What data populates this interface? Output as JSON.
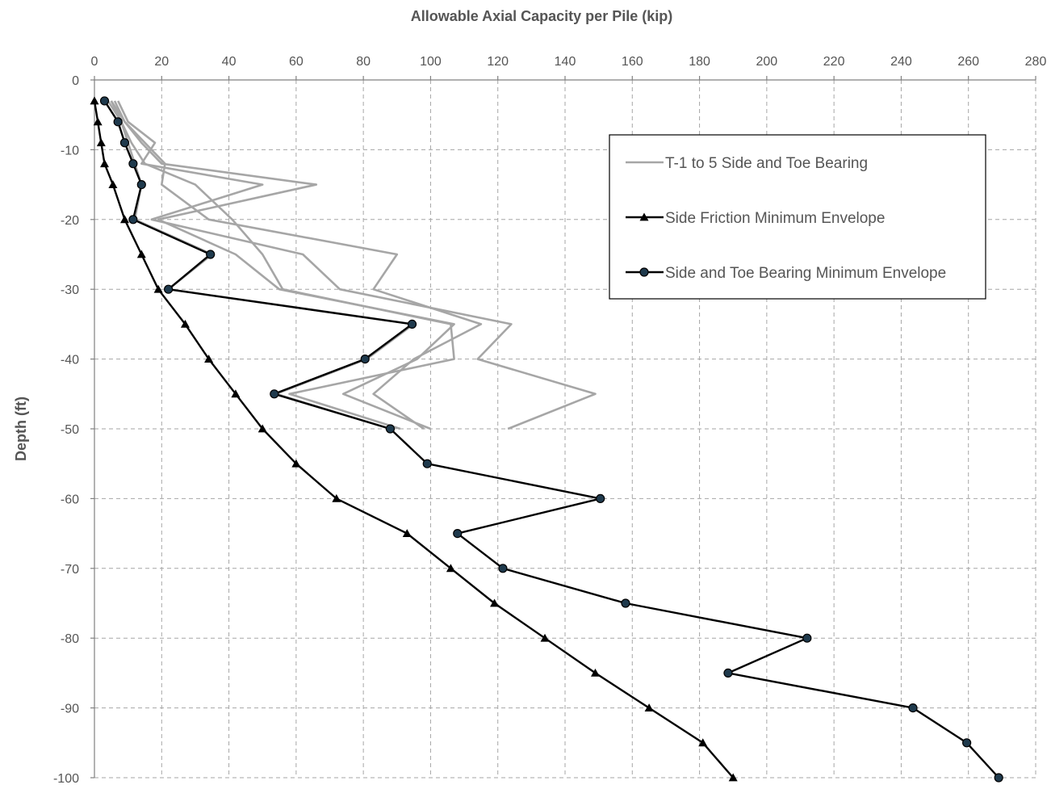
{
  "chart_data": {
    "type": "line",
    "title": "",
    "xlabel": "Allowable Axial Capacity per Pile (kip)",
    "ylabel": "Depth (ft)",
    "xlim": [
      0,
      280
    ],
    "ylim": [
      -100,
      0
    ],
    "x_ticks": [
      0,
      20,
      40,
      60,
      80,
      100,
      120,
      140,
      160,
      180,
      200,
      220,
      240,
      260,
      280
    ],
    "y_ticks": [
      0,
      -10,
      -20,
      -30,
      -40,
      -50,
      -60,
      -70,
      -80,
      -90,
      -100
    ],
    "x_axis_position": "top",
    "grid": true,
    "legend_position": "top-right",
    "legend": [
      "T-1 to 5 Side and Toe Bearing",
      "Side Friction Minimum Envelope",
      "Side and Toe Bearing Minimum Envelope"
    ],
    "colors": {
      "gray_series": "#a6a6a6",
      "envelope": "#000000",
      "marker_fill": "#1f3a4d"
    },
    "series": [
      {
        "name": "T-1 to 5 Side and Toe Bearing",
        "style": "gray",
        "points": [
          [
            5,
            -3
          ],
          [
            8,
            -6
          ],
          [
            10,
            -9
          ],
          [
            12,
            -12
          ],
          [
            14,
            -15
          ],
          [
            12,
            -20
          ],
          [
            35,
            -25
          ],
          [
            22,
            -30
          ],
          [
            95,
            -35
          ],
          [
            81,
            -40
          ],
          [
            54,
            -45
          ],
          [
            88,
            -50
          ]
        ]
      },
      {
        "name": "",
        "style": "gray",
        "points": [
          [
            6,
            -3
          ],
          [
            9,
            -6
          ],
          [
            14,
            -9
          ],
          [
            20,
            -12
          ],
          [
            66,
            -15
          ],
          [
            19,
            -20
          ],
          [
            42,
            -25
          ],
          [
            55,
            -30
          ],
          [
            107,
            -35
          ],
          [
            96,
            -40
          ],
          [
            74,
            -45
          ],
          [
            100,
            -50
          ]
        ]
      },
      {
        "name": "",
        "style": "gray",
        "points": [
          [
            7,
            -3
          ],
          [
            10,
            -6
          ],
          [
            18,
            -9
          ],
          [
            14,
            -12
          ],
          [
            50,
            -15
          ],
          [
            17,
            -20
          ],
          [
            62,
            -25
          ],
          [
            73,
            -30
          ],
          [
            124,
            -35
          ],
          [
            114,
            -40
          ],
          [
            149,
            -45
          ],
          [
            123,
            -50
          ]
        ]
      },
      {
        "name": "",
        "style": "gray",
        "points": [
          [
            5,
            -3
          ],
          [
            9,
            -6
          ],
          [
            15,
            -9
          ],
          [
            21,
            -12
          ],
          [
            20,
            -15
          ],
          [
            34,
            -20
          ],
          [
            90,
            -25
          ],
          [
            83,
            -30
          ],
          [
            115,
            -35
          ],
          [
            95,
            -40
          ],
          [
            83,
            -45
          ],
          [
            98,
            -50
          ]
        ]
      },
      {
        "name": "",
        "style": "gray",
        "points": [
          [
            4,
            -3
          ],
          [
            8,
            -6
          ],
          [
            11,
            -9
          ],
          [
            15,
            -12
          ],
          [
            30,
            -15
          ],
          [
            41,
            -20
          ],
          [
            50,
            -25
          ],
          [
            56,
            -30
          ],
          [
            106,
            -35
          ],
          [
            107,
            -40
          ],
          [
            58,
            -45
          ],
          [
            91,
            -50
          ]
        ]
      },
      {
        "name": "Side Friction Minimum Envelope",
        "style": "triangle",
        "points": [
          [
            0,
            -3
          ],
          [
            1,
            -6
          ],
          [
            2,
            -9
          ],
          [
            3,
            -12
          ],
          [
            5.5,
            -15
          ],
          [
            9,
            -20
          ],
          [
            14,
            -25
          ],
          [
            19,
            -30
          ],
          [
            27,
            -35
          ],
          [
            34,
            -40
          ],
          [
            42,
            -45
          ],
          [
            50,
            -50
          ],
          [
            60,
            -55
          ],
          [
            72,
            -60
          ],
          [
            93,
            -65
          ],
          [
            106,
            -70
          ],
          [
            119,
            -75
          ],
          [
            134,
            -80
          ],
          [
            149,
            -85
          ],
          [
            165,
            -90
          ],
          [
            181,
            -95
          ],
          [
            190,
            -100
          ]
        ]
      },
      {
        "name": "Side and Toe Bearing Minimum Envelope",
        "style": "circle",
        "points": [
          [
            3,
            -3
          ],
          [
            7,
            -6
          ],
          [
            9,
            -9
          ],
          [
            11.5,
            -12
          ],
          [
            14,
            -15
          ],
          [
            11.5,
            -20
          ],
          [
            34.5,
            -25
          ],
          [
            22,
            -30
          ],
          [
            94.5,
            -35
          ],
          [
            80.5,
            -40
          ],
          [
            53.5,
            -45
          ],
          [
            88,
            -50
          ],
          [
            99,
            -55
          ],
          [
            150.5,
            -60
          ],
          [
            108,
            -65
          ],
          [
            121.5,
            -70
          ],
          [
            158,
            -75
          ],
          [
            212,
            -80
          ],
          [
            188.5,
            -85
          ],
          [
            243.5,
            -90
          ],
          [
            259.5,
            -95
          ],
          [
            269,
            -100
          ]
        ]
      }
    ]
  }
}
